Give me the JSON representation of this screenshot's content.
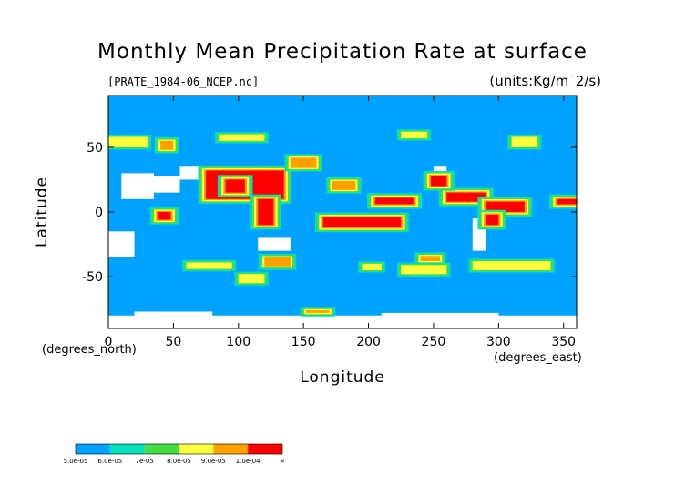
{
  "chart_data": {
    "type": "heatmap",
    "title": "Monthly Mean Precipitation Rate at surface",
    "subtitle_left": "[PRATE_1984-06_NCEP.nc]",
    "units": "(units:Kg/m¯2/s)",
    "xlabel": "Longitude",
    "ylabel": "Latitude",
    "x_unit": "(degrees_east)",
    "y_unit": "(degrees_north)",
    "xlim": [
      0,
      360
    ],
    "ylim": [
      -90,
      90
    ],
    "x_ticks": [
      0,
      50,
      100,
      150,
      200,
      250,
      300,
      350
    ],
    "y_ticks": [
      50,
      0,
      -50
    ],
    "background_color": "#00a2ff",
    "masked_color": "#ffffff",
    "colorbar": {
      "levels": [
        "5.0e-05",
        "6.0e-05",
        "7e-05",
        "8.0e-05",
        "9.0e-05",
        "1.0e-04",
        "∞"
      ],
      "colors": [
        "#00a2ff",
        "#00e0c0",
        "#44dd44",
        "#ffff40",
        "#ffa000",
        "#ff0000"
      ]
    },
    "regions": [
      {
        "level": 5,
        "lon": [
          75,
          135
        ],
        "lat": [
          10,
          32
        ]
      },
      {
        "level": 5,
        "lon": [
          90,
          105
        ],
        "lat": [
          15,
          25
        ]
      },
      {
        "level": 5,
        "lon": [
          115,
          127
        ],
        "lat": [
          -10,
          10
        ]
      },
      {
        "level": 5,
        "lon": [
          165,
          225
        ],
        "lat": [
          -12,
          -4
        ]
      },
      {
        "level": 5,
        "lon": [
          205,
          235
        ],
        "lat": [
          6,
          11
        ]
      },
      {
        "level": 5,
        "lon": [
          260,
          290
        ],
        "lat": [
          8,
          15
        ]
      },
      {
        "level": 5,
        "lon": [
          290,
          320
        ],
        "lat": [
          0,
          8
        ]
      },
      {
        "level": 5,
        "lon": [
          345,
          360
        ],
        "lat": [
          6,
          10
        ]
      },
      {
        "level": 5,
        "lon": [
          290,
          300
        ],
        "lat": [
          -10,
          -2
        ]
      },
      {
        "level": 5,
        "lon": [
          38,
          48
        ],
        "lat": [
          -6,
          0
        ]
      },
      {
        "level": 5,
        "lon": [
          248,
          260
        ],
        "lat": [
          20,
          28
        ]
      },
      {
        "level": 4,
        "lon": [
          172,
          190
        ],
        "lat": [
          17,
          24
        ]
      },
      {
        "level": 4,
        "lon": [
          140,
          160
        ],
        "lat": [
          34,
          42
        ]
      },
      {
        "level": 4,
        "lon": [
          40,
          50
        ],
        "lat": [
          48,
          55
        ]
      },
      {
        "level": 4,
        "lon": [
          120,
          140
        ],
        "lat": [
          -42,
          -35
        ]
      },
      {
        "level": 4,
        "lon": [
          240,
          255
        ],
        "lat": [
          -38,
          -34
        ]
      },
      {
        "level": 4,
        "lon": [
          152,
          170
        ],
        "lat": [
          -78,
          -76
        ]
      },
      {
        "level": 3,
        "lon": [
          60,
          95
        ],
        "lat": [
          -44,
          -39
        ]
      },
      {
        "level": 3,
        "lon": [
          100,
          120
        ],
        "lat": [
          -55,
          -48
        ]
      },
      {
        "level": 3,
        "lon": [
          225,
          260
        ],
        "lat": [
          -48,
          -41
        ]
      },
      {
        "level": 3,
        "lon": [
          280,
          340
        ],
        "lat": [
          -45,
          -38
        ]
      },
      {
        "level": 3,
        "lon": [
          195,
          210
        ],
        "lat": [
          -45,
          -40
        ]
      },
      {
        "level": 3,
        "lon": [
          0,
          30
        ],
        "lat": [
          50,
          58
        ]
      },
      {
        "level": 3,
        "lon": [
          85,
          120
        ],
        "lat": [
          55,
          60
        ]
      },
      {
        "level": 3,
        "lon": [
          225,
          245
        ],
        "lat": [
          57,
          62
        ]
      },
      {
        "level": 3,
        "lon": [
          310,
          330
        ],
        "lat": [
          50,
          58
        ]
      }
    ],
    "masked_regions": [
      {
        "lon": [
          10,
          35
        ],
        "lat": [
          10,
          30
        ]
      },
      {
        "lon": [
          35,
          55
        ],
        "lat": [
          15,
          28
        ]
      },
      {
        "lon": [
          55,
          75
        ],
        "lat": [
          25,
          35
        ]
      },
      {
        "lon": [
          0,
          20
        ],
        "lat": [
          -35,
          -15
        ]
      },
      {
        "lon": [
          115,
          140
        ],
        "lat": [
          -30,
          -20
        ]
      },
      {
        "lon": [
          250,
          260
        ],
        "lat": [
          30,
          35
        ]
      },
      {
        "lon": [
          280,
          290
        ],
        "lat": [
          -30,
          -5
        ]
      },
      {
        "lon": [
          0,
          360
        ],
        "lat": [
          -90,
          -80
        ]
      },
      {
        "lon": [
          20,
          80
        ],
        "lat": [
          -82,
          -77
        ]
      },
      {
        "lon": [
          210,
          300
        ],
        "lat": [
          -84,
          -78
        ]
      }
    ]
  }
}
